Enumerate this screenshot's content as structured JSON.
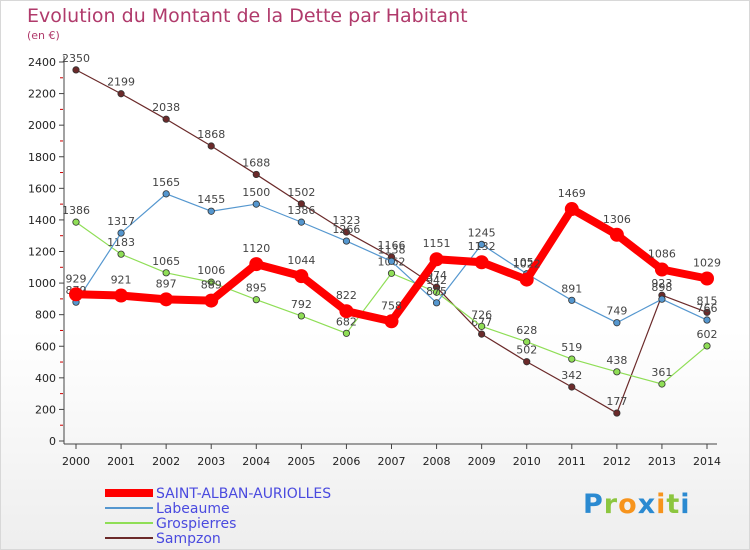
{
  "chart_data": {
    "type": "line",
    "title": "Evolution du Montant de la Dette par Habitant",
    "subtitle": "(en €)",
    "x": [
      2000,
      2001,
      2002,
      2003,
      2004,
      2005,
      2006,
      2007,
      2008,
      2009,
      2010,
      2011,
      2012,
      2013,
      2014
    ],
    "ylim": [
      0,
      2400
    ],
    "yticks": [
      0,
      200,
      400,
      600,
      800,
      1000,
      1200,
      1400,
      1600,
      1800,
      2000,
      2200,
      2400
    ],
    "grid": false,
    "legend_position": "bottom-left",
    "series": [
      {
        "name": "Sampzon",
        "color": "#6b2a2a",
        "values": [
          2350,
          2199,
          2038,
          1868,
          1688,
          1502,
          1323,
          1166,
          974,
          677,
          502,
          342,
          177,
          923,
          815
        ]
      },
      {
        "name": "Grospierres",
        "color": "#8fde56",
        "values": [
          1386,
          1183,
          1065,
          1006,
          895,
          792,
          682,
          1062,
          942,
          726,
          628,
          519,
          438,
          361,
          602
        ]
      },
      {
        "name": "Labeaume",
        "color": "#5597cf",
        "values": [
          879,
          1317,
          1565,
          1455,
          1500,
          1386,
          1266,
          1138,
          875,
          1245,
          1059,
          891,
          749,
          898,
          766
        ]
      },
      {
        "name": "SAINT-ALBAN-AURIOLLES",
        "color": "#ff0000",
        "values": [
          929,
          921,
          897,
          889,
          1120,
          1044,
          822,
          758,
          1151,
          1132,
          1022,
          1469,
          1306,
          1086,
          1029
        ]
      }
    ],
    "legend": [
      "SAINT-ALBAN-AURIOLLES",
      "Labeaume",
      "Grospierres",
      "Sampzon"
    ]
  },
  "logo": {
    "letters": [
      "P",
      "r",
      "o",
      "x",
      "i",
      "t",
      "i"
    ],
    "colors": [
      "#2b8ad1",
      "#8cc63f",
      "#f7941d",
      "#2b8ad1",
      "#f7941d",
      "#8cc63f",
      "#2b8ad1"
    ]
  }
}
